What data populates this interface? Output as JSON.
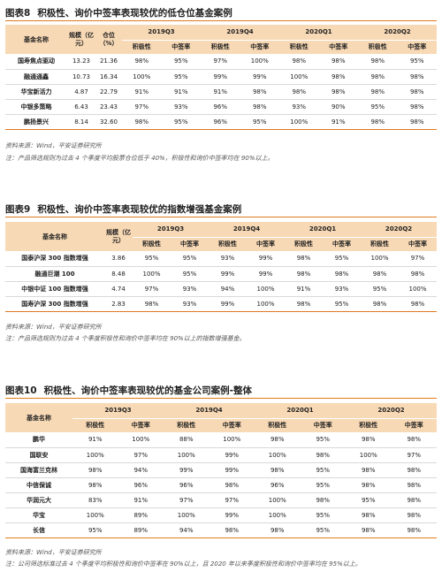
{
  "fig8": {
    "num": "图表8",
    "title": "积极性、询价中签率表现较优的低仓位基金案例",
    "headers": {
      "name": "基金名称",
      "scale": "规模（亿元）",
      "position": "仓位（%）",
      "periods": [
        "2019Q3",
        "2019Q4",
        "2020Q1",
        "2020Q2"
      ],
      "sub": [
        "积极性",
        "中签率"
      ]
    },
    "rows": [
      {
        "name": "国寿焦点驱动",
        "scale": "13.23",
        "position": "21.36",
        "vals": [
          "98%",
          "95%",
          "97%",
          "100%",
          "98%",
          "98%",
          "98%",
          "95%"
        ]
      },
      {
        "name": "融通通鑫",
        "scale": "10.73",
        "position": "16.34",
        "vals": [
          "100%",
          "95%",
          "99%",
          "99%",
          "100%",
          "98%",
          "98%",
          "98%"
        ]
      },
      {
        "name": "华宝新活力",
        "scale": "4.87",
        "position": "22.79",
        "vals": [
          "91%",
          "91%",
          "91%",
          "98%",
          "98%",
          "98%",
          "98%",
          "98%"
        ]
      },
      {
        "name": "中银多策略",
        "scale": "6.43",
        "position": "23.43",
        "vals": [
          "97%",
          "93%",
          "96%",
          "98%",
          "93%",
          "90%",
          "95%",
          "98%"
        ]
      },
      {
        "name": "鹏扬景兴",
        "scale": "8.14",
        "position": "32.60",
        "vals": [
          "98%",
          "95%",
          "96%",
          "95%",
          "100%",
          "91%",
          "98%",
          "98%"
        ]
      }
    ],
    "source": "资料来源：Wind，平安证券研究所",
    "note": "注：产品筛选规则为过去 4 个季度平均股票仓位低于 40%，积极性和询价中签率均在 90%以上。"
  },
  "fig9": {
    "num": "图表9",
    "title": "积极性、询价中签率表现较优的指数增强基金案例",
    "headers": {
      "name": "基金名称",
      "scale": "规模（亿元）",
      "periods": [
        "2019Q3",
        "2019Q4",
        "2020Q1",
        "2020Q2"
      ],
      "sub": [
        "积极性",
        "中签率"
      ]
    },
    "rows": [
      {
        "name": "国泰沪深 300 指数增强",
        "scale": "3.86",
        "vals": [
          "95%",
          "95%",
          "93%",
          "99%",
          "98%",
          "95%",
          "100%",
          "97%"
        ]
      },
      {
        "name": "融通巨潮 100",
        "scale": "8.48",
        "vals": [
          "100%",
          "95%",
          "99%",
          "99%",
          "98%",
          "98%",
          "98%",
          "98%"
        ]
      },
      {
        "name": "中银中证 100 指数增强",
        "scale": "4.74",
        "vals": [
          "97%",
          "93%",
          "94%",
          "100%",
          "91%",
          "93%",
          "95%",
          "100%"
        ]
      },
      {
        "name": "国寿沪深 300 指数增强",
        "scale": "2.83",
        "vals": [
          "98%",
          "93%",
          "99%",
          "100%",
          "98%",
          "95%",
          "98%",
          "98%"
        ]
      }
    ],
    "source": "资料来源：Wind，平安证券研究所",
    "note": "注：产品筛选规则为过去 4 个季度积极性和询价中签率均在 90%以上的指数增强基金。"
  },
  "fig10": {
    "num": "图表10",
    "title": "积极性、询价中签率表现较优的基金公司案例-整体",
    "headers": {
      "name": "基金名称",
      "periods": [
        "2019Q3",
        "2019Q4",
        "2020Q1",
        "2020Q2"
      ],
      "sub": [
        "积极性",
        "中签率"
      ]
    },
    "rows": [
      {
        "name": "鹏华",
        "vals": [
          "91%",
          "100%",
          "88%",
          "100%",
          "98%",
          "95%",
          "98%",
          "98%"
        ]
      },
      {
        "name": "国联安",
        "vals": [
          "100%",
          "97%",
          "100%",
          "99%",
          "100%",
          "98%",
          "100%",
          "97%"
        ]
      },
      {
        "name": "国海富兰克林",
        "vals": [
          "98%",
          "94%",
          "99%",
          "99%",
          "98%",
          "95%",
          "98%",
          "98%"
        ]
      },
      {
        "name": "中信保诚",
        "vals": [
          "98%",
          "96%",
          "96%",
          "98%",
          "96%",
          "95%",
          "98%",
          "98%"
        ]
      },
      {
        "name": "华润元大",
        "vals": [
          "83%",
          "91%",
          "97%",
          "97%",
          "100%",
          "98%",
          "95%",
          "98%"
        ]
      },
      {
        "name": "华宝",
        "vals": [
          "100%",
          "89%",
          "100%",
          "99%",
          "100%",
          "95%",
          "98%",
          "98%"
        ]
      },
      {
        "name": "长信",
        "vals": [
          "95%",
          "89%",
          "94%",
          "98%",
          "98%",
          "95%",
          "98%",
          "98%"
        ]
      }
    ],
    "source": "资料来源：Wind，平安证券研究所",
    "note": "注：公司筛选标准过去 4 个季度平均积极性和询价中签率在 90%以上，且 2020 年以来季度积极性和询价中签率均在 95%以上。"
  }
}
